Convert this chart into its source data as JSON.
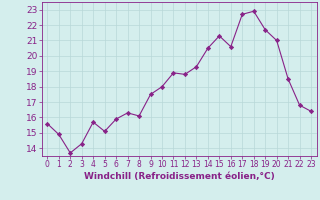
{
  "x": [
    0,
    1,
    2,
    3,
    4,
    5,
    6,
    7,
    8,
    9,
    10,
    11,
    12,
    13,
    14,
    15,
    16,
    17,
    18,
    19,
    20,
    21,
    22,
    23
  ],
  "y": [
    15.6,
    14.9,
    13.7,
    14.3,
    15.7,
    15.1,
    15.9,
    16.3,
    16.1,
    17.5,
    18.0,
    18.9,
    18.8,
    19.3,
    20.5,
    21.3,
    20.6,
    22.7,
    22.9,
    21.7,
    21.0,
    18.5,
    16.8,
    16.4
  ],
  "line_color": "#882288",
  "marker": "D",
  "marker_size": 2.2,
  "xlabel": "Windchill (Refroidissement éolien,°C)",
  "xlim": [
    -0.5,
    23.5
  ],
  "ylim": [
    13.5,
    23.5
  ],
  "yticks": [
    14,
    15,
    16,
    17,
    18,
    19,
    20,
    21,
    22,
    23
  ],
  "xticks": [
    0,
    1,
    2,
    3,
    4,
    5,
    6,
    7,
    8,
    9,
    10,
    11,
    12,
    13,
    14,
    15,
    16,
    17,
    18,
    19,
    20,
    21,
    22,
    23
  ],
  "background_color": "#d4eeed",
  "grid_color": "#b8d8d8",
  "line_width": 0.8,
  "xlabel_fontsize": 6.5,
  "ytick_fontsize": 6.5,
  "xtick_fontsize": 5.5
}
